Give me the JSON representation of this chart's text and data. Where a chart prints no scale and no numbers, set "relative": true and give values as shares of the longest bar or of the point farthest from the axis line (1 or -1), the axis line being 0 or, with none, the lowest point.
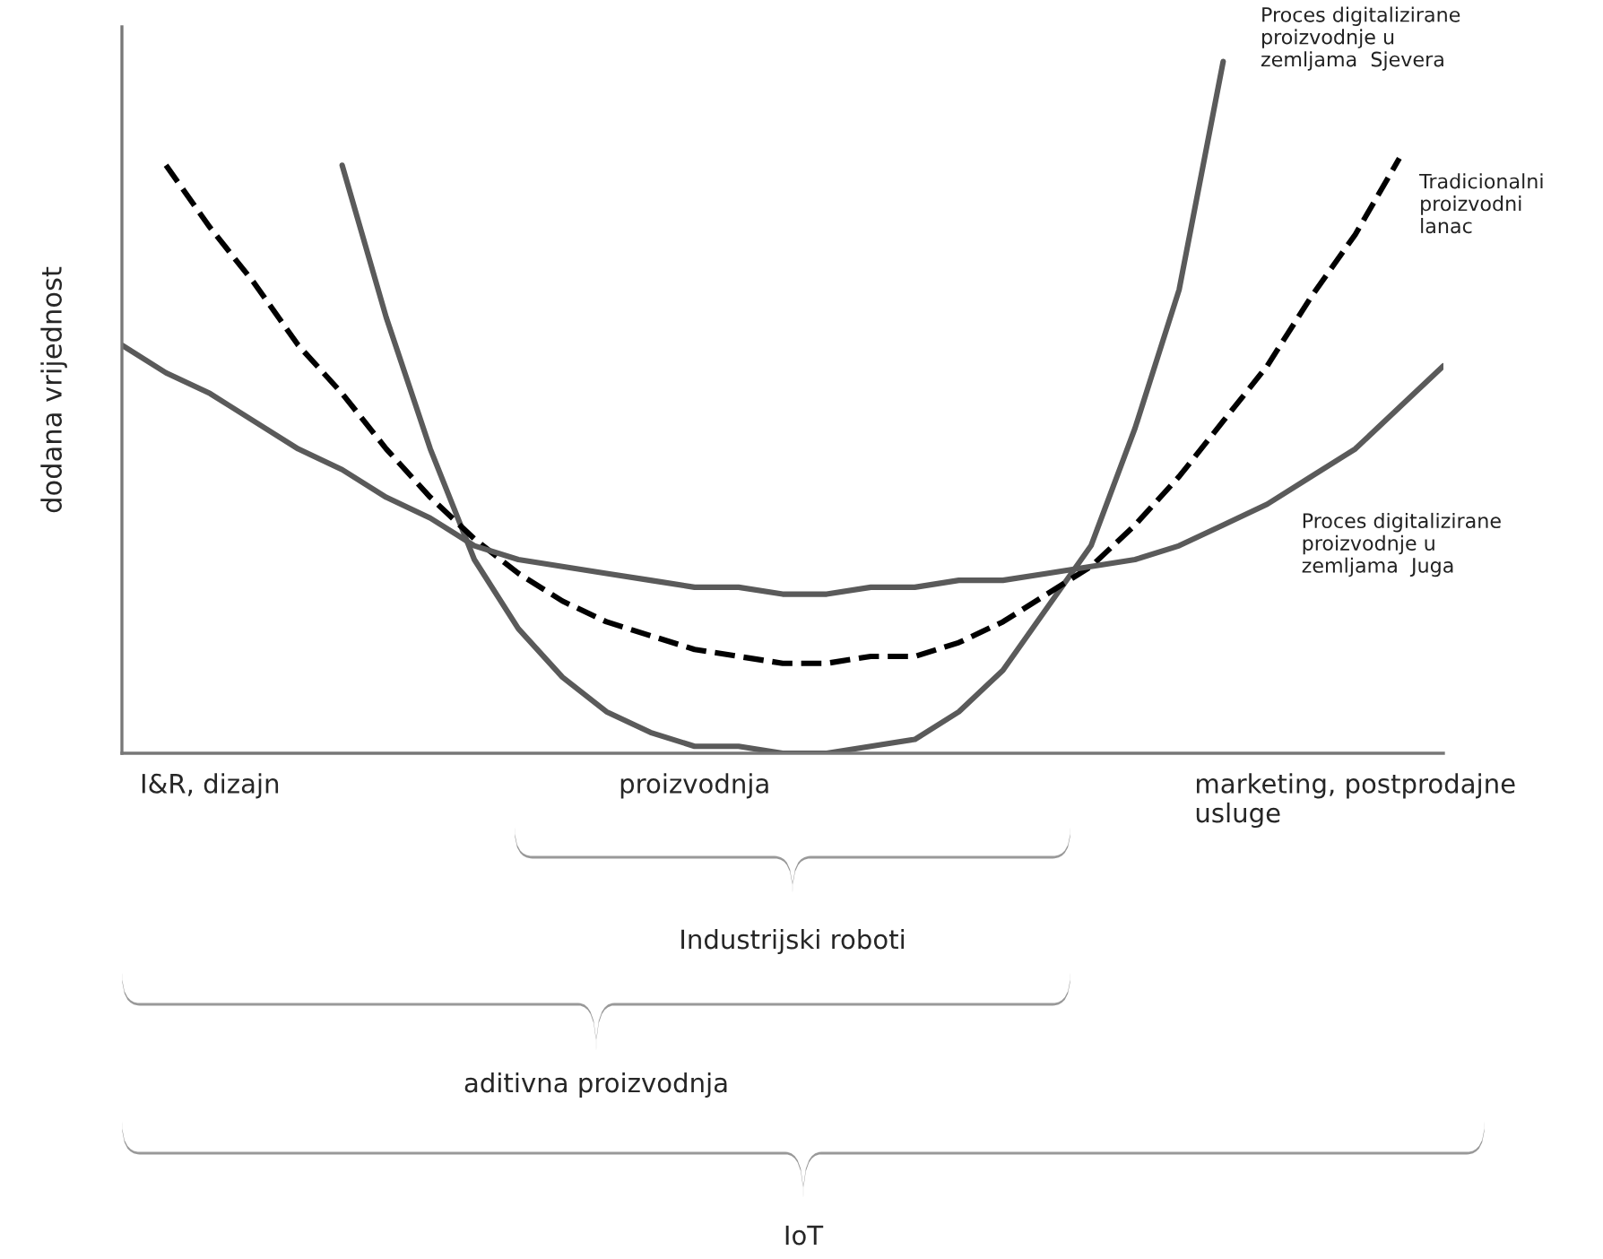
{
  "chart_data": {
    "type": "line",
    "relative": true,
    "ylabel": "dodana vrijednost",
    "categories": [
      null,
      null,
      "I&R, dizajn",
      null,
      null,
      null,
      null,
      null,
      null,
      null,
      null,
      null,
      null,
      "proizvodnja",
      null,
      null,
      null,
      null,
      null,
      null,
      null,
      null,
      null,
      null,
      null,
      null,
      null,
      null,
      "marketing, postprodajne\nusluge",
      null,
      null
    ],
    "series": [
      {
        "name": "Proces digitalizirane\nproizvodnje u\nzemljama  Sjevera",
        "color": "#5a5a5a",
        "line_style": "solid",
        "values": [
          null,
          null,
          null,
          null,
          null,
          0.85,
          0.63,
          0.44,
          0.28,
          0.18,
          0.11,
          0.06,
          0.03,
          0.01,
          0.01,
          0,
          0,
          0.01,
          0.02,
          0.06,
          0.12,
          0.21,
          0.3,
          0.47,
          0.67,
          1.0,
          null,
          null,
          null,
          null,
          null
        ]
      },
      {
        "name": "Tradicionalni\nproizvodni\nlanac",
        "color": "#000000",
        "line_style": "dashed",
        "values": [
          null,
          0.85,
          0.76,
          0.68,
          0.59,
          0.52,
          0.44,
          0.37,
          0.31,
          0.26,
          0.22,
          0.19,
          0.17,
          0.15,
          0.14,
          0.13,
          0.13,
          0.14,
          0.14,
          0.16,
          0.19,
          0.23,
          0.27,
          0.33,
          0.4,
          0.48,
          0.56,
          0.66,
          0.75,
          0.86,
          null
        ]
      },
      {
        "name": "Proces digitalizirane\nproizvodnje u\nzemljama  Juga",
        "color": "#5a5a5a",
        "line_style": "solid",
        "values": [
          0.59,
          0.55,
          0.52,
          0.48,
          0.44,
          0.41,
          0.37,
          0.34,
          0.3,
          0.28,
          0.27,
          0.26,
          0.25,
          0.24,
          0.24,
          0.23,
          0.23,
          0.24,
          0.24,
          0.25,
          0.25,
          0.26,
          0.27,
          0.28,
          0.3,
          0.33,
          0.36,
          0.4,
          0.44,
          0.5,
          0.56
        ]
      }
    ],
    "annotations": [
      "Industrijski roboti",
      "aditivna proizvodnja",
      "IoT"
    ]
  }
}
